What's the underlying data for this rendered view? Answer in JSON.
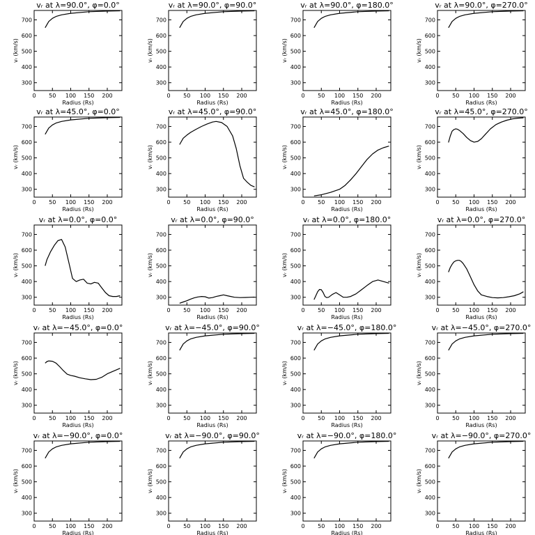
{
  "figure": {
    "xlabel": "Radius (Rs)",
    "ylabel": "vᵣ (km/s)",
    "xticks": [
      0,
      50,
      100,
      150,
      200
    ],
    "yticks": [
      300,
      400,
      500,
      600,
      700
    ],
    "xlim": [
      0,
      240
    ],
    "ylim": [
      250,
      760
    ]
  },
  "chart_data": [
    {
      "type": "line",
      "title": "vᵣ at λ=90.0°, φ=0.0°",
      "xlabel": "Radius (Rs)",
      "ylabel": "vᵣ (km/s)",
      "xlim": [
        0,
        240
      ],
      "ylim": [
        250,
        760
      ],
      "x": [
        30,
        35,
        40,
        50,
        60,
        75,
        100,
        150,
        200,
        235
      ],
      "y": [
        650,
        670,
        690,
        710,
        722,
        732,
        742,
        752,
        756,
        758
      ]
    },
    {
      "type": "line",
      "title": "vᵣ at λ=90.0°, φ=90.0°",
      "xlabel": "Radius (Rs)",
      "ylabel": "vᵣ (km/s)",
      "xlim": [
        0,
        240
      ],
      "ylim": [
        250,
        760
      ],
      "x": [
        30,
        35,
        40,
        50,
        60,
        75,
        100,
        150,
        200,
        235
      ],
      "y": [
        650,
        670,
        690,
        710,
        722,
        732,
        742,
        752,
        756,
        758
      ]
    },
    {
      "type": "line",
      "title": "vᵣ at λ=90.0°, φ=180.0°",
      "xlabel": "Radius (Rs)",
      "ylabel": "vᵣ (km/s)",
      "xlim": [
        0,
        240
      ],
      "ylim": [
        250,
        760
      ],
      "x": [
        30,
        35,
        40,
        50,
        60,
        75,
        100,
        150,
        200,
        235
      ],
      "y": [
        650,
        670,
        690,
        710,
        722,
        732,
        742,
        752,
        756,
        758
      ]
    },
    {
      "type": "line",
      "title": "vᵣ at λ=90.0°, φ=270.0°",
      "xlabel": "Radius (Rs)",
      "ylabel": "vᵣ (km/s)",
      "xlim": [
        0,
        240
      ],
      "ylim": [
        250,
        760
      ],
      "x": [
        30,
        35,
        40,
        50,
        60,
        75,
        100,
        150,
        200,
        235
      ],
      "y": [
        650,
        670,
        690,
        710,
        722,
        732,
        742,
        752,
        756,
        758
      ]
    },
    {
      "type": "line",
      "title": "vᵣ at λ=45.0°, φ=0.0°",
      "xlabel": "Radius (Rs)",
      "ylabel": "vᵣ (km/s)",
      "xlim": [
        0,
        240
      ],
      "ylim": [
        250,
        760
      ],
      "x": [
        30,
        35,
        40,
        50,
        60,
        75,
        100,
        150,
        200,
        235
      ],
      "y": [
        650,
        670,
        690,
        710,
        722,
        732,
        742,
        752,
        756,
        758
      ]
    },
    {
      "type": "line",
      "title": "vᵣ at λ=45.0°, φ=90.0°",
      "xlabel": "Radius (Rs)",
      "ylabel": "vᵣ (km/s)",
      "xlim": [
        0,
        240
      ],
      "ylim": [
        250,
        760
      ],
      "x": [
        30,
        40,
        50,
        60,
        75,
        90,
        105,
        120,
        130,
        145,
        160,
        175,
        185,
        195,
        205,
        215,
        225,
        235
      ],
      "y": [
        585,
        625,
        645,
        662,
        682,
        700,
        715,
        728,
        732,
        725,
        700,
        640,
        560,
        450,
        370,
        345,
        325,
        315
      ]
    },
    {
      "type": "line",
      "title": "vᵣ at λ=45.0°, φ=180.0°",
      "xlabel": "Radius (Rs)",
      "ylabel": "vᵣ (km/s)",
      "xlim": [
        0,
        240
      ],
      "ylim": [
        250,
        760
      ],
      "x": [
        30,
        50,
        75,
        100,
        115,
        130,
        145,
        160,
        175,
        190,
        205,
        220,
        235
      ],
      "y": [
        258,
        265,
        280,
        300,
        325,
        360,
        400,
        445,
        490,
        525,
        550,
        565,
        575
      ]
    },
    {
      "type": "line",
      "title": "vᵣ at λ=45.0°, φ=270.0°",
      "xlabel": "Radius (Rs)",
      "ylabel": "vᵣ (km/s)",
      "xlim": [
        0,
        240
      ],
      "ylim": [
        250,
        760
      ],
      "x": [
        30,
        35,
        40,
        45,
        50,
        55,
        60,
        70,
        80,
        90,
        100,
        110,
        120,
        130,
        145,
        160,
        175,
        190,
        205,
        220,
        235
      ],
      "y": [
        598,
        640,
        670,
        680,
        685,
        682,
        675,
        655,
        630,
        610,
        600,
        605,
        622,
        648,
        685,
        712,
        728,
        740,
        748,
        753,
        755
      ]
    },
    {
      "type": "line",
      "title": "vᵣ at λ=0.0°, φ=0.0°",
      "xlabel": "Radius (Rs)",
      "ylabel": "vᵣ (km/s)",
      "xlim": [
        0,
        240
      ],
      "ylim": [
        250,
        760
      ],
      "x": [
        30,
        35,
        45,
        55,
        65,
        75,
        85,
        95,
        105,
        115,
        125,
        135,
        145,
        155,
        165,
        175,
        185,
        195,
        205,
        215,
        225,
        235
      ],
      "y": [
        500,
        540,
        590,
        630,
        660,
        668,
        620,
        520,
        420,
        400,
        410,
        415,
        390,
        385,
        395,
        390,
        360,
        330,
        310,
        305,
        305,
        310
      ]
    },
    {
      "type": "line",
      "title": "vᵣ at λ=0.0°, φ=90.0°",
      "xlabel": "Radius (Rs)",
      "ylabel": "vᵣ (km/s)",
      "xlim": [
        0,
        240
      ],
      "ylim": [
        250,
        760
      ],
      "x": [
        30,
        40,
        50,
        60,
        70,
        80,
        90,
        100,
        110,
        120,
        130,
        140,
        150,
        160,
        170,
        180,
        195,
        210,
        225,
        235
      ],
      "y": [
        262,
        270,
        278,
        288,
        296,
        302,
        305,
        303,
        295,
        298,
        305,
        310,
        315,
        310,
        305,
        300,
        298,
        299,
        300,
        301
      ]
    },
    {
      "type": "line",
      "title": "vᵣ at λ=0.0°, φ=180.0°",
      "xlabel": "Radius (Rs)",
      "ylabel": "vᵣ (km/s)",
      "xlim": [
        0,
        240
      ],
      "ylim": [
        250,
        760
      ],
      "x": [
        30,
        35,
        40,
        45,
        50,
        55,
        60,
        65,
        70,
        80,
        90,
        100,
        110,
        120,
        130,
        145,
        160,
        175,
        190,
        205,
        220,
        235
      ],
      "y": [
        285,
        310,
        335,
        350,
        348,
        330,
        305,
        298,
        300,
        318,
        330,
        315,
        300,
        300,
        305,
        322,
        348,
        375,
        400,
        410,
        400,
        390
      ]
    },
    {
      "type": "line",
      "title": "vᵣ at λ=0.0°, φ=270.0°",
      "xlabel": "Radius (Rs)",
      "ylabel": "vᵣ (km/s)",
      "xlim": [
        0,
        240
      ],
      "ylim": [
        250,
        760
      ],
      "x": [
        30,
        35,
        40,
        45,
        50,
        55,
        60,
        65,
        70,
        80,
        90,
        100,
        110,
        120,
        135,
        150,
        165,
        180,
        195,
        210,
        225,
        235
      ],
      "y": [
        460,
        490,
        510,
        525,
        532,
        535,
        535,
        528,
        515,
        480,
        430,
        380,
        340,
        315,
        305,
        298,
        296,
        298,
        303,
        310,
        322,
        335
      ]
    },
    {
      "type": "line",
      "title": "vᵣ at λ=−45.0°, φ=0.0°",
      "xlabel": "Radius (Rs)",
      "ylabel": "vᵣ (km/s)",
      "xlim": [
        0,
        240
      ],
      "ylim": [
        250,
        760
      ],
      "x": [
        30,
        35,
        40,
        50,
        60,
        70,
        80,
        90,
        100,
        110,
        125,
        140,
        155,
        170,
        185,
        200,
        215,
        235
      ],
      "y": [
        568,
        578,
        582,
        580,
        568,
        545,
        520,
        498,
        490,
        485,
        475,
        468,
        463,
        465,
        478,
        500,
        515,
        535
      ]
    },
    {
      "type": "line",
      "title": "vᵣ at λ=−45.0°, φ=90.0°",
      "xlabel": "Radius (Rs)",
      "ylabel": "vᵣ (km/s)",
      "xlim": [
        0,
        240
      ],
      "ylim": [
        250,
        760
      ],
      "x": [
        30,
        35,
        40,
        50,
        60,
        75,
        100,
        150,
        200,
        235
      ],
      "y": [
        650,
        670,
        690,
        710,
        722,
        732,
        742,
        752,
        756,
        758
      ]
    },
    {
      "type": "line",
      "title": "vᵣ at λ=−45.0°, φ=180.0°",
      "xlabel": "Radius (Rs)",
      "ylabel": "vᵣ (km/s)",
      "xlim": [
        0,
        240
      ],
      "ylim": [
        250,
        760
      ],
      "x": [
        30,
        35,
        40,
        50,
        60,
        75,
        100,
        150,
        200,
        235
      ],
      "y": [
        650,
        670,
        690,
        710,
        722,
        732,
        742,
        752,
        756,
        758
      ]
    },
    {
      "type": "line",
      "title": "vᵣ at λ=−45.0°, φ=270.0°",
      "xlabel": "Radius (Rs)",
      "ylabel": "vᵣ (km/s)",
      "xlim": [
        0,
        240
      ],
      "ylim": [
        250,
        760
      ],
      "x": [
        30,
        35,
        40,
        50,
        60,
        75,
        100,
        150,
        200,
        235
      ],
      "y": [
        650,
        670,
        690,
        710,
        722,
        732,
        742,
        752,
        756,
        758
      ]
    },
    {
      "type": "line",
      "title": "vᵣ at λ=−90.0°, φ=0.0°",
      "xlabel": "Radius (Rs)",
      "ylabel": "vᵣ (km/s)",
      "xlim": [
        0,
        240
      ],
      "ylim": [
        250,
        760
      ],
      "x": [
        30,
        35,
        40,
        50,
        60,
        75,
        100,
        150,
        200,
        235
      ],
      "y": [
        650,
        670,
        690,
        710,
        722,
        732,
        742,
        752,
        756,
        758
      ]
    },
    {
      "type": "line",
      "title": "vᵣ at λ=−90.0°, φ=90.0°",
      "xlabel": "Radius (Rs)",
      "ylabel": "vᵣ (km/s)",
      "xlim": [
        0,
        240
      ],
      "ylim": [
        250,
        760
      ],
      "x": [
        30,
        35,
        40,
        50,
        60,
        75,
        100,
        150,
        200,
        235
      ],
      "y": [
        650,
        670,
        690,
        710,
        722,
        732,
        742,
        752,
        756,
        758
      ]
    },
    {
      "type": "line",
      "title": "vᵣ at λ=−90.0°, φ=180.0°",
      "xlabel": "Radius (Rs)",
      "ylabel": "vᵣ (km/s)",
      "xlim": [
        0,
        240
      ],
      "ylim": [
        250,
        760
      ],
      "x": [
        30,
        35,
        40,
        50,
        60,
        75,
        100,
        150,
        200,
        235
      ],
      "y": [
        650,
        670,
        690,
        710,
        722,
        732,
        742,
        752,
        756,
        758
      ]
    },
    {
      "type": "line",
      "title": "vᵣ at λ=−90.0°, φ=270.0°",
      "xlabel": "Radius (Rs)",
      "ylabel": "vᵣ (km/s)",
      "xlim": [
        0,
        240
      ],
      "ylim": [
        250,
        760
      ],
      "x": [
        30,
        35,
        40,
        50,
        60,
        75,
        100,
        150,
        200,
        235
      ],
      "y": [
        650,
        670,
        690,
        710,
        722,
        732,
        742,
        752,
        756,
        758
      ]
    }
  ]
}
